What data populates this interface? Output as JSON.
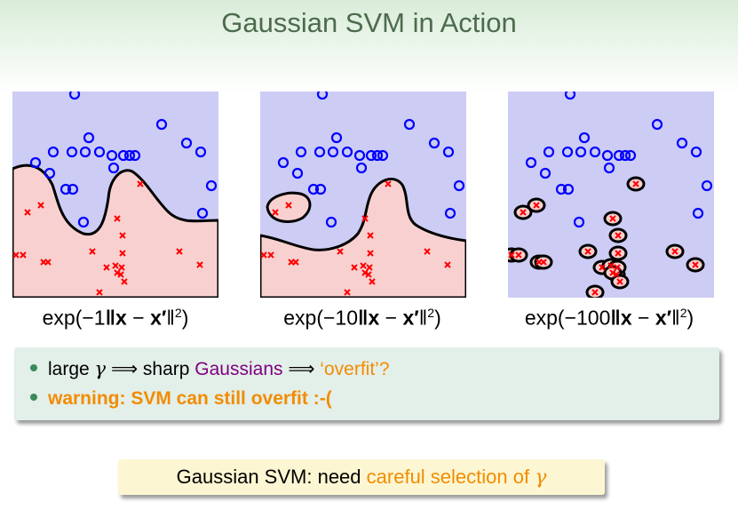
{
  "title": "Gaussian SVM in Action",
  "panels": [
    {
      "label_prefix": "exp(",
      "gamma": "−1",
      "caption_rest": "‖x − x′‖²)"
    },
    {
      "label_prefix": "exp(",
      "gamma": "−10",
      "caption_rest": "‖x − x′‖²)"
    },
    {
      "label_prefix": "exp(",
      "gamma": "−100",
      "caption_rest": "‖x − x′‖²)"
    }
  ],
  "bullets": {
    "b1_part1": "large",
    "b1_gamma": "γ",
    "b1_implies1": "⟹",
    "b1_part2": "sharp",
    "b1_gaussians": "Gaussians",
    "b1_implies2": "⟹",
    "b1_overfit": "‘overfit’?",
    "b2": "warning: SVM can still overfit :-("
  },
  "note": {
    "part1": "Gaussian SVM: need",
    "part2": "careful selection of",
    "gamma": "γ"
  },
  "colors": {
    "positive_region": "#ccccf5",
    "negative_region": "#f9d0d0",
    "circle": "#0000ff",
    "cross": "#ff0000",
    "boundary": "#000000"
  }
}
